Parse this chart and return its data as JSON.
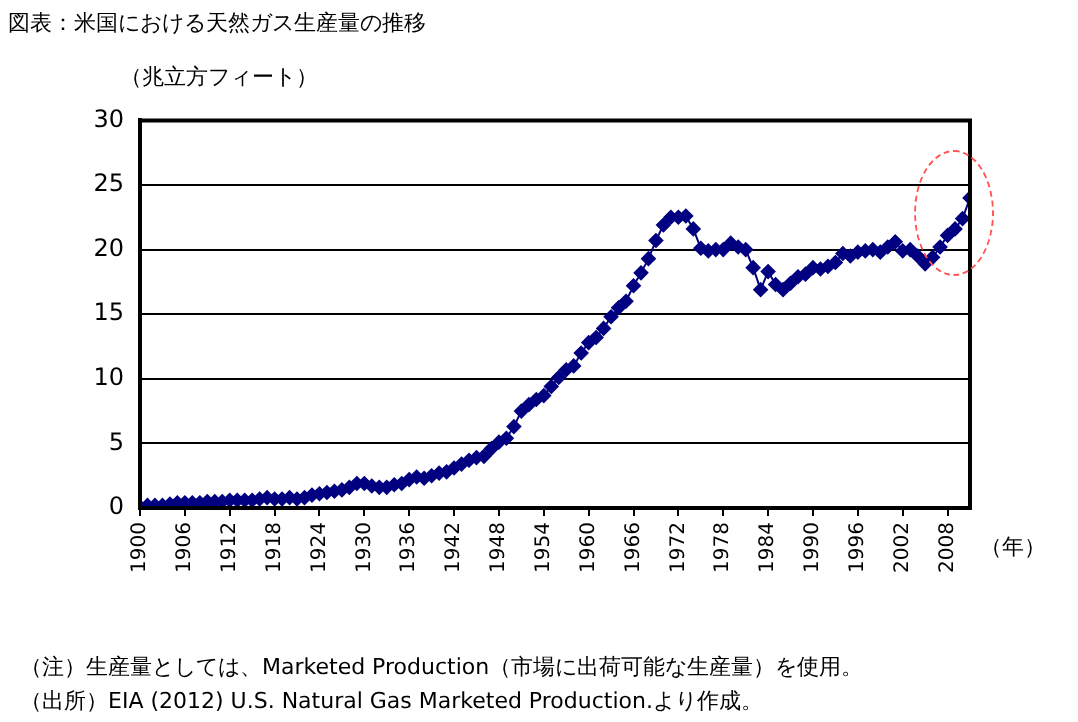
{
  "chart_data": {
    "type": "line",
    "title": "図表：米国における天然ガス生産量の推移",
    "ylabel": "（兆立方フィート）",
    "xlabel": "（年）",
    "x": [
      1900,
      1901,
      1902,
      1903,
      1904,
      1905,
      1906,
      1907,
      1908,
      1909,
      1910,
      1911,
      1912,
      1913,
      1914,
      1915,
      1916,
      1917,
      1918,
      1919,
      1920,
      1921,
      1922,
      1923,
      1924,
      1925,
      1926,
      1927,
      1928,
      1929,
      1930,
      1931,
      1932,
      1933,
      1934,
      1935,
      1936,
      1937,
      1938,
      1939,
      1940,
      1941,
      1942,
      1943,
      1944,
      1945,
      1946,
      1947,
      1948,
      1949,
      1950,
      1951,
      1952,
      1953,
      1954,
      1955,
      1956,
      1957,
      1958,
      1959,
      1960,
      1961,
      1962,
      1963,
      1964,
      1965,
      1966,
      1967,
      1968,
      1969,
      1970,
      1971,
      1972,
      1973,
      1974,
      1975,
      1976,
      1977,
      1978,
      1979,
      1980,
      1981,
      1982,
      1983,
      1984,
      1985,
      1986,
      1987,
      1988,
      1989,
      1990,
      1991,
      1992,
      1993,
      1994,
      1995,
      1996,
      1997,
      1998,
      1999,
      2000,
      2001,
      2002,
      2003,
      2004,
      2005,
      2006,
      2007,
      2008,
      2009,
      2010,
      2011
    ],
    "series": [
      {
        "color": "#000080",
        "values": [
          0.1,
          0.2,
          0.2,
          0.2,
          0.3,
          0.4,
          0.4,
          0.4,
          0.4,
          0.5,
          0.5,
          0.5,
          0.6,
          0.6,
          0.6,
          0.6,
          0.7,
          0.8,
          0.7,
          0.7,
          0.8,
          0.7,
          0.8,
          1.0,
          1.1,
          1.2,
          1.3,
          1.4,
          1.6,
          1.9,
          1.9,
          1.7,
          1.6,
          1.6,
          1.8,
          1.9,
          2.2,
          2.4,
          2.3,
          2.5,
          2.7,
          2.8,
          3.1,
          3.4,
          3.7,
          3.9,
          4.0,
          4.6,
          5.1,
          5.4,
          6.3,
          7.5,
          8.0,
          8.4,
          8.7,
          9.4,
          10.1,
          10.7,
          11.0,
          12.0,
          12.8,
          13.2,
          13.9,
          14.8,
          15.5,
          16.0,
          17.2,
          18.2,
          19.3,
          20.7,
          21.9,
          22.5,
          22.5,
          22.6,
          21.6,
          20.1,
          19.9,
          20.0,
          20.0,
          20.5,
          20.2,
          20.0,
          18.6,
          16.9,
          18.3,
          17.3,
          16.9,
          17.4,
          17.9,
          18.1,
          18.6,
          18.5,
          18.7,
          19.0,
          19.7,
          19.5,
          19.8,
          19.9,
          20.0,
          19.8,
          20.2,
          20.6,
          19.9,
          20.0,
          19.5,
          18.9,
          19.4,
          20.2,
          21.1,
          21.6,
          22.4,
          24.0
        ]
      }
    ],
    "xlim": [
      1900,
      2011
    ],
    "xticks": [
      1900,
      1906,
      1912,
      1918,
      1924,
      1930,
      1936,
      1942,
      1948,
      1954,
      1960,
      1966,
      1972,
      1978,
      1984,
      1990,
      1996,
      2002,
      2008
    ],
    "ylim": [
      0,
      30
    ],
    "yticks": [
      0,
      5,
      10,
      15,
      20,
      25,
      30
    ],
    "grid": "y",
    "legend": false,
    "marker": "diamond",
    "line_style": "solid",
    "annotations": [
      "（注）生産量としては、Marketed Production（市場に出荷可能な生産量）を使用。",
      "（出所）EIA (2012) U.S. Natural Gas Marketed Production.より作成。"
    ]
  }
}
